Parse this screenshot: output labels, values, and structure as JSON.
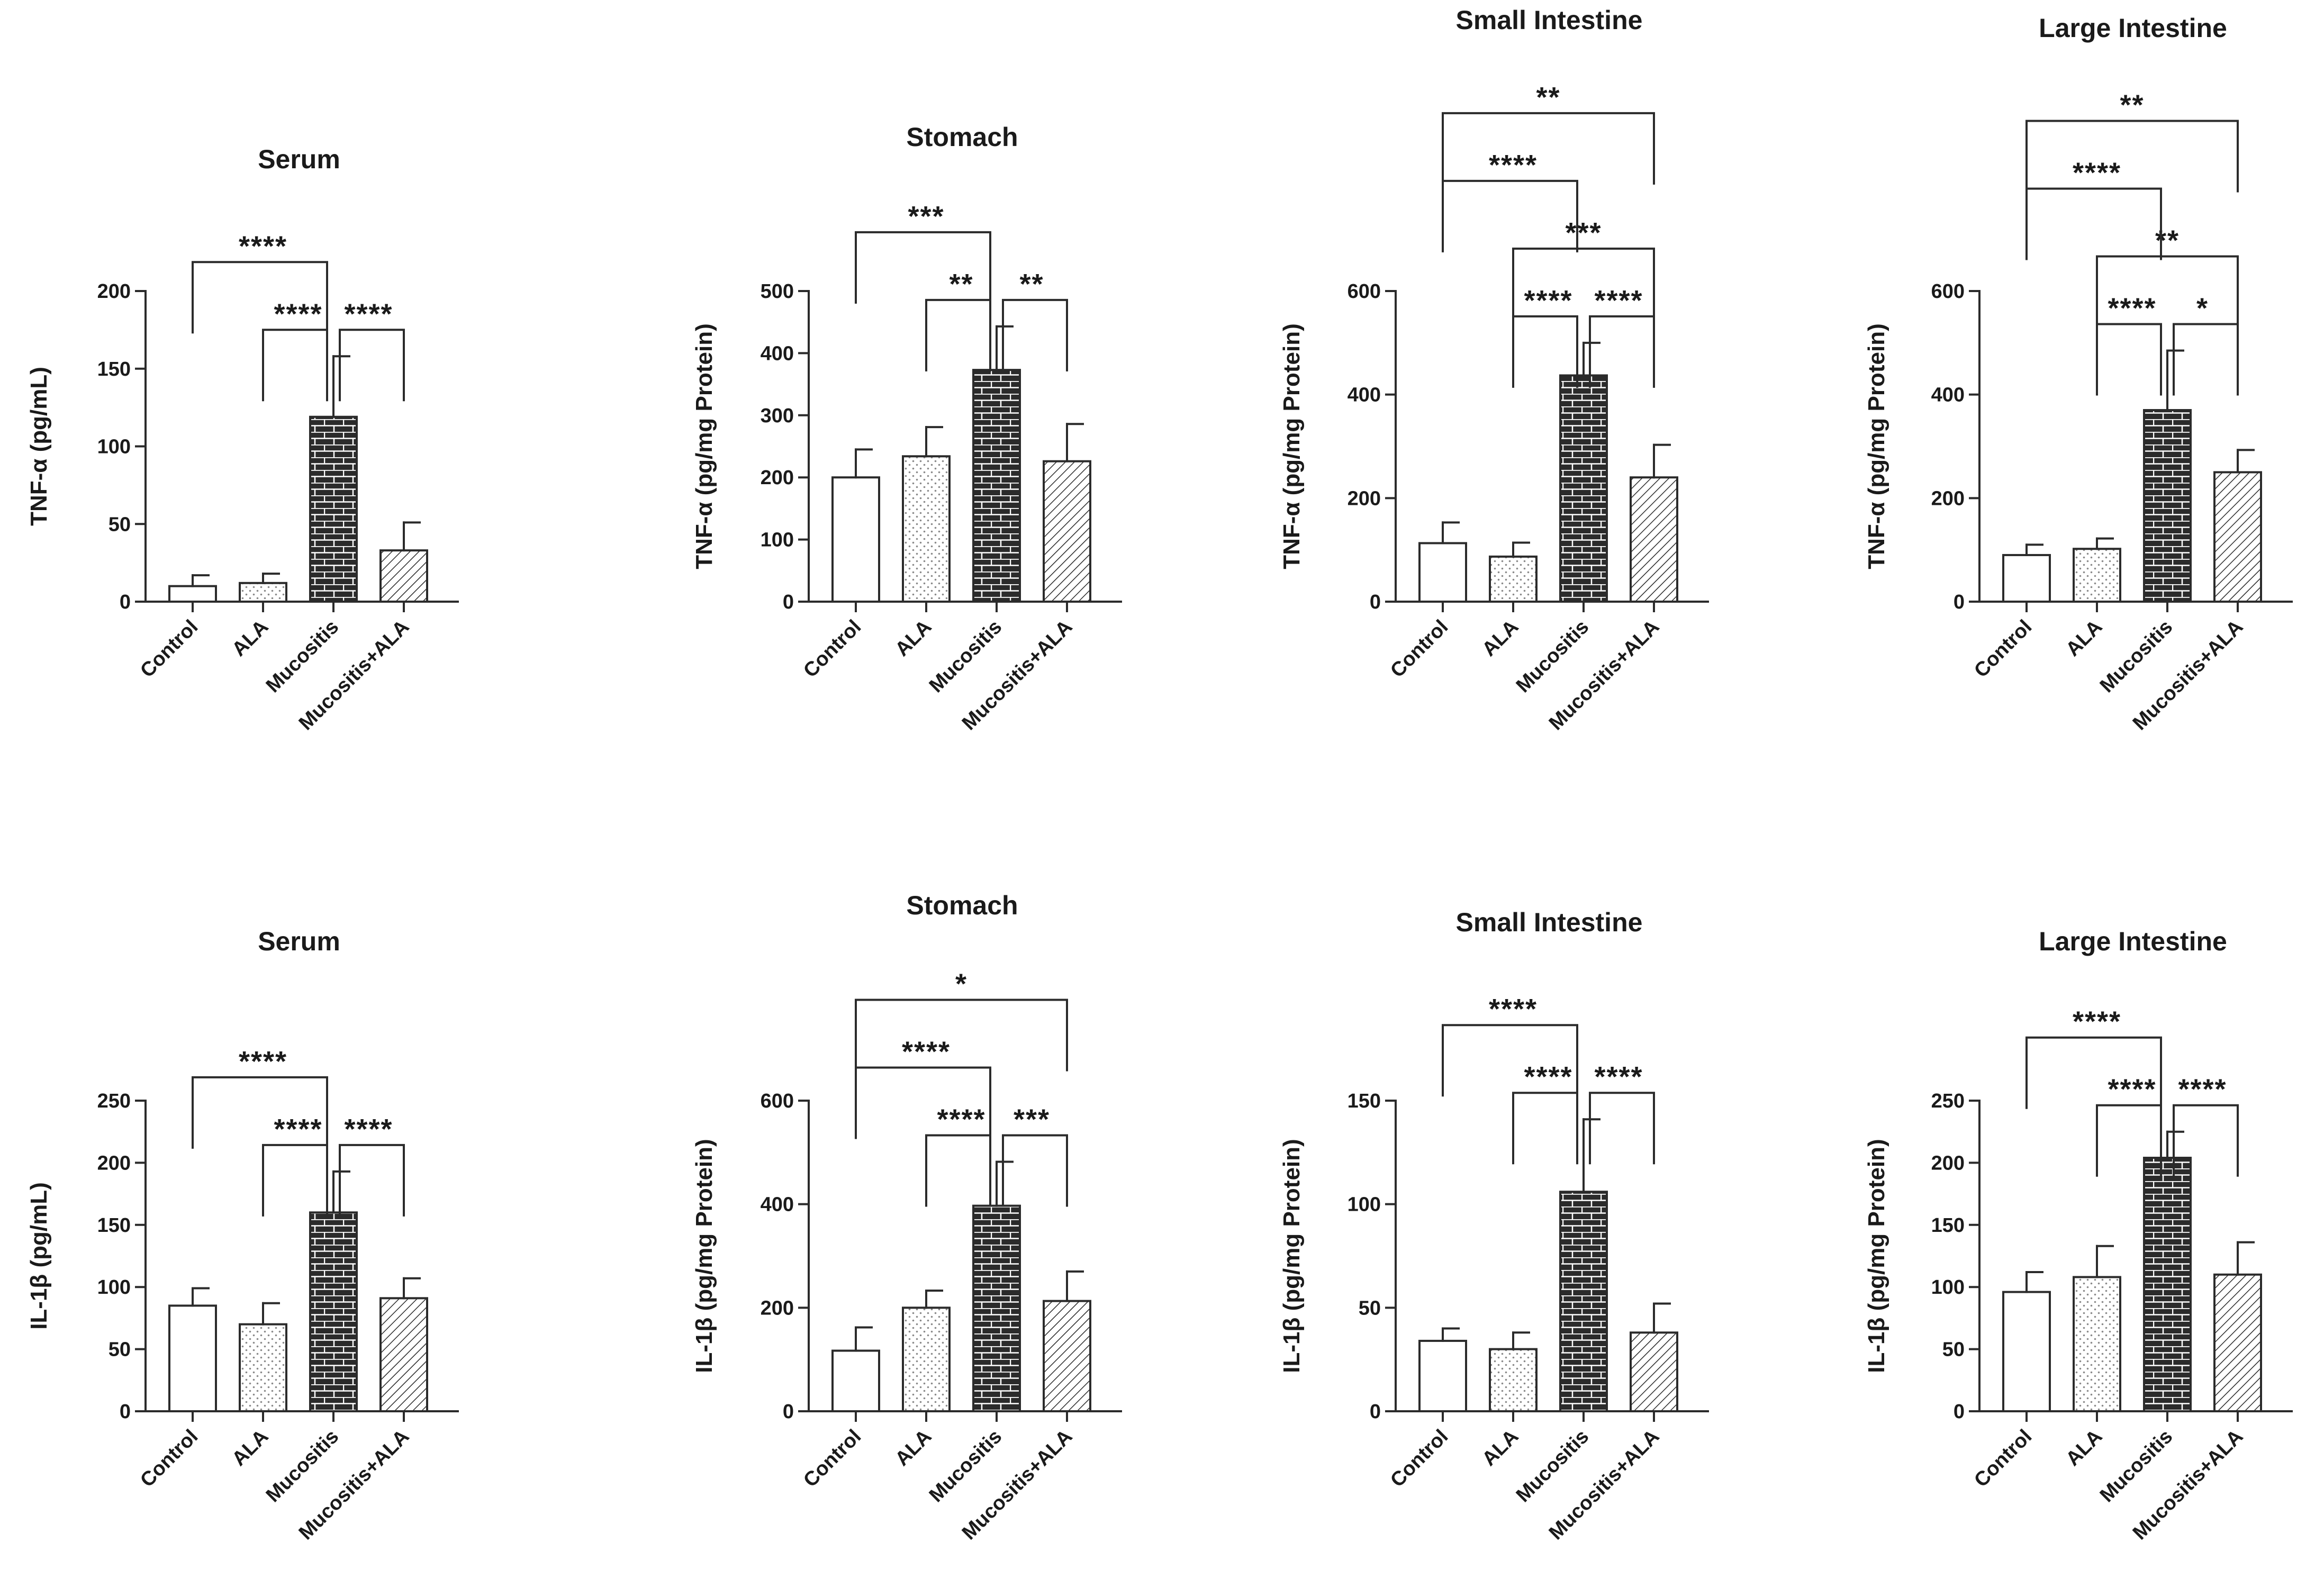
{
  "chart_data": [
    {
      "type": "bar",
      "title": "Serum",
      "ylabel": "TNF-α (pg/mL)",
      "xlabel": "",
      "categories": [
        "Control",
        "ALA",
        "Mucositis",
        "Mucositis+ALA"
      ],
      "values": [
        10,
        12,
        119,
        33
      ],
      "errors": [
        7,
        6,
        39,
        18
      ],
      "ylim": [
        0,
        200
      ],
      "yticks": [
        0,
        50,
        100,
        150,
        200
      ],
      "significance": [
        {
          "from": 0,
          "to": 2,
          "label": "****"
        },
        {
          "from": 2,
          "to": 3,
          "label": "****"
        },
        {
          "from": 1,
          "to": 2,
          "label": "****"
        }
      ]
    },
    {
      "type": "bar",
      "title": "Stomach",
      "ylabel": "TNF-α (pg/mg Protein)",
      "xlabel": "",
      "categories": [
        "Control",
        "ALA",
        "Mucositis",
        "Mucositis+ALA"
      ],
      "values": [
        200,
        234,
        373,
        226
      ],
      "errors": [
        45,
        47,
        70,
        60
      ],
      "ylim": [
        0,
        500
      ],
      "yticks": [
        0,
        100,
        200,
        300,
        400,
        500
      ],
      "significance": [
        {
          "from": 0,
          "to": 2,
          "label": "***"
        },
        {
          "from": 1,
          "to": 2,
          "label": "**"
        },
        {
          "from": 2,
          "to": 3,
          "label": "**"
        }
      ]
    },
    {
      "type": "bar",
      "title": "Small Intestine",
      "ylabel": "TNF-α (pg/mg Protein)",
      "xlabel": "",
      "categories": [
        "Control",
        "ALA",
        "Mucositis",
        "Mucositis+ALA"
      ],
      "values": [
        113,
        87,
        437,
        240
      ],
      "errors": [
        40,
        27,
        63,
        63
      ],
      "ylim": [
        0,
        600
      ],
      "yticks": [
        0,
        200,
        400,
        600
      ],
      "significance": [
        {
          "from": 0,
          "to": 3,
          "label": "**"
        },
        {
          "from": 1,
          "to": 3,
          "label": "***"
        },
        {
          "from": 0,
          "to": 2,
          "label": "****"
        },
        {
          "from": 2,
          "to": 3,
          "label": "****"
        },
        {
          "from": 1,
          "to": 2,
          "label": "****"
        }
      ]
    },
    {
      "type": "bar",
      "title": "Large Intestine",
      "ylabel": "TNF-α (pg/mg Protein)",
      "xlabel": "",
      "categories": [
        "Control",
        "ALA",
        "Mucositis",
        "Mucositis+ALA"
      ],
      "values": [
        90,
        102,
        370,
        250
      ],
      "errors": [
        20,
        20,
        115,
        43
      ],
      "ylim": [
        0,
        600
      ],
      "yticks": [
        0,
        200,
        400,
        600
      ],
      "significance": [
        {
          "from": 0,
          "to": 3,
          "label": "**"
        },
        {
          "from": 1,
          "to": 3,
          "label": "**"
        },
        {
          "from": 0,
          "to": 2,
          "label": "****"
        },
        {
          "from": 1,
          "to": 2,
          "label": "****"
        },
        {
          "from": 2,
          "to": 3,
          "label": "*"
        }
      ]
    },
    {
      "type": "bar",
      "title": "Serum",
      "ylabel": "IL-1β (pg/mL)",
      "xlabel": "",
      "categories": [
        "Control",
        "ALA",
        "Mucositis",
        "Mucositis+ALA"
      ],
      "values": [
        85,
        70,
        160,
        91
      ],
      "errors": [
        14,
        17,
        33,
        16
      ],
      "ylim": [
        0,
        250
      ],
      "yticks": [
        0,
        50,
        100,
        150,
        200,
        250
      ],
      "significance": [
        {
          "from": 0,
          "to": 2,
          "label": "****"
        },
        {
          "from": 2,
          "to": 3,
          "label": "****"
        },
        {
          "from": 1,
          "to": 2,
          "label": "****"
        }
      ]
    },
    {
      "type": "bar",
      "title": "Stomach",
      "ylabel": "IL-1β (pg/mg Protein)",
      "xlabel": "",
      "categories": [
        "Control",
        "ALA",
        "Mucositis",
        "Mucositis+ALA"
      ],
      "values": [
        117,
        200,
        397,
        213
      ],
      "errors": [
        45,
        33,
        85,
        57
      ],
      "ylim": [
        0,
        600
      ],
      "yticks": [
        0,
        200,
        400,
        600
      ],
      "significance": [
        {
          "from": 0,
          "to": 3,
          "label": "*"
        },
        {
          "from": 0,
          "to": 2,
          "label": "****"
        },
        {
          "from": 2,
          "to": 3,
          "label": "***"
        },
        {
          "from": 1,
          "to": 2,
          "label": "****"
        }
      ]
    },
    {
      "type": "bar",
      "title": "Small Intestine",
      "ylabel": "IL-1β  (pg/mg Protein)",
      "xlabel": "",
      "categories": [
        "Control",
        "ALA",
        "Mucositis",
        "Mucositis+ALA"
      ],
      "values": [
        34,
        30,
        106,
        38
      ],
      "errors": [
        6,
        8,
        35,
        14
      ],
      "ylim": [
        0,
        150
      ],
      "yticks": [
        0,
        50,
        100,
        150
      ],
      "significance": [
        {
          "from": 0,
          "to": 2,
          "label": "****"
        },
        {
          "from": 2,
          "to": 3,
          "label": "****"
        },
        {
          "from": 1,
          "to": 2,
          "label": "****"
        }
      ]
    },
    {
      "type": "bar",
      "title": "Large Intestine",
      "ylabel": "IL-1β  (pg/mg Protein)",
      "xlabel": "",
      "categories": [
        "Control",
        "ALA",
        "Mucositis",
        "Mucositis+ALA"
      ],
      "values": [
        96,
        108,
        204,
        110
      ],
      "errors": [
        16,
        25,
        21,
        26
      ],
      "ylim": [
        0,
        250
      ],
      "yticks": [
        0,
        50,
        100,
        150,
        200,
        250
      ],
      "significance": [
        {
          "from": 0,
          "to": 2,
          "label": "****"
        },
        {
          "from": 2,
          "to": 3,
          "label": "****"
        },
        {
          "from": 1,
          "to": 2,
          "label": "****"
        }
      ]
    }
  ]
}
